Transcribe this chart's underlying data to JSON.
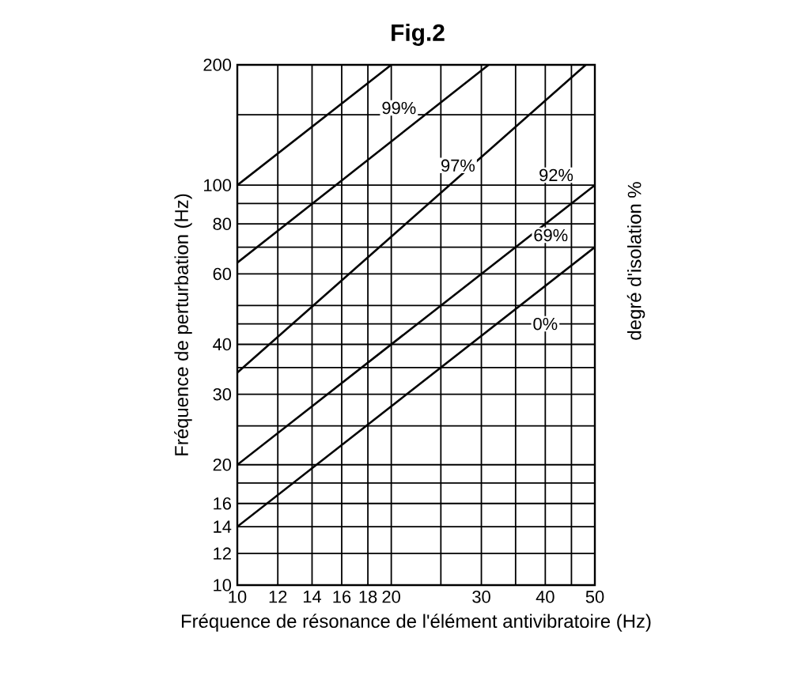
{
  "chart_data": {
    "type": "line",
    "title": "Fig.2",
    "xlabel": "Fréquence de résonance de l'élément antivibratoire (Hz)",
    "ylabel": "Fréquence de perturbation (Hz)",
    "y2label": "degré d'isolation %",
    "log": "xy",
    "grid": true,
    "marker": "none",
    "line_style": "solid",
    "xlim": [
      10,
      50
    ],
    "xticks": [
      10,
      12,
      14,
      16,
      18,
      20,
      30,
      40,
      50
    ],
    "ylim": [
      10,
      200
    ],
    "yticks": [
      10,
      12,
      14,
      16,
      20,
      30,
      40,
      60,
      80,
      100,
      200
    ],
    "series": [
      {
        "color": "#000000",
        "x": [
          10,
          20
        ],
        "values": [
          100,
          200
        ]
      },
      {
        "color": "#000000",
        "x": [
          10,
          31
        ],
        "values": [
          64,
          200
        ]
      },
      {
        "color": "#000000",
        "x": [
          10,
          48
        ],
        "values": [
          34,
          200
        ]
      },
      {
        "color": "#000000",
        "x": [
          10,
          50
        ],
        "values": [
          20,
          100
        ]
      },
      {
        "color": "#000000",
        "x": [
          10,
          50
        ],
        "values": [
          14,
          70
        ]
      }
    ],
    "annotations": [
      {
        "text": "99%",
        "x": 20.7,
        "y": 156
      },
      {
        "text": "97%",
        "x": 27,
        "y": 112
      },
      {
        "text": "92%",
        "x": 42,
        "y": 106
      },
      {
        "text": "69%",
        "x": 41,
        "y": 75
      },
      {
        "text": "0%",
        "x": 40,
        "y": 45
      }
    ]
  }
}
